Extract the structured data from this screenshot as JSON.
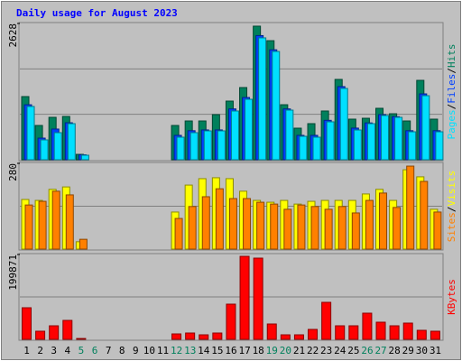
{
  "chart_data": [
    {
      "type": "bar",
      "title": "Daily usage for August 2023",
      "ylim": [
        0,
        2628
      ],
      "yticks": [
        2628
      ],
      "legend_separator": "/",
      "series": [
        {
          "name": "Hits",
          "color": "#00805c",
          "values": [
            1218,
            661,
            818,
            835,
            104,
            0,
            0,
            0,
            0,
            0,
            0,
            661,
            748,
            748,
            870,
            1131,
            1392,
            2576,
            2296,
            1061,
            609,
            696,
            940,
            1549,
            783,
            800,
            992,
            887,
            748,
            1531,
            783
          ]
        },
        {
          "name": "Files",
          "color": "#0040ff",
          "values": [
            1060,
            417,
            592,
            713,
            95,
            0,
            0,
            0,
            0,
            0,
            0,
            470,
            560,
            575,
            575,
            980,
            1200,
            2394,
            2120,
            980,
            470,
            470,
            760,
            1410,
            610,
            710,
            870,
            830,
            560,
            1270,
            560
          ]
        },
        {
          "name": "Pages",
          "color": "#00e0ff",
          "values": [
            1027,
            383,
            522,
            696,
            87,
            0,
            0,
            0,
            0,
            0,
            0,
            435,
            522,
            557,
            557,
            940,
            1166,
            2350,
            2088,
            957,
            452,
            435,
            731,
            1375,
            574,
            696,
            853,
            818,
            539,
            1235,
            539
          ]
        }
      ]
    },
    {
      "type": "bar",
      "ylim": [
        0,
        280
      ],
      "yticks": [
        280
      ],
      "series": [
        {
          "name": "Visits",
          "color": "#ffff00",
          "values": [
            162,
            159,
            195,
            203,
            24,
            0,
            0,
            0,
            0,
            0,
            0,
            121,
            209,
            230,
            233,
            230,
            189,
            159,
            153,
            159,
            147,
            156,
            159,
            159,
            159,
            180,
            195,
            159,
            259,
            236,
            130
          ]
        },
        {
          "name": "Sites",
          "color": "#ff8000",
          "values": [
            144,
            156,
            189,
            177,
            32,
            0,
            0,
            0,
            0,
            0,
            0,
            100,
            139,
            171,
            197,
            165,
            165,
            153,
            147,
            130,
            144,
            139,
            130,
            139,
            118,
            159,
            183,
            136,
            271,
            221,
            121
          ]
        }
      ]
    },
    {
      "type": "bar",
      "ylim": [
        0,
        199871
      ],
      "yticks": [
        199871
      ],
      "series": [
        {
          "name": "KBytes",
          "color": "#ff0000",
          "values": [
            74420,
            19130,
            31890,
            44650,
            2000,
            0,
            0,
            0,
            0,
            0,
            0,
            12760,
            14880,
            10630,
            14880,
            82910,
            195600,
            191340,
            36140,
            10630,
            10630,
            23390,
            87170,
            31890,
            31890,
            61650,
            40390,
            31890,
            38270,
            21260,
            19130
          ]
        }
      ],
      "categories": [
        "1",
        "2",
        "3",
        "4",
        "5",
        "6",
        "7",
        "8",
        "9",
        "10",
        "11",
        "12",
        "13",
        "14",
        "15",
        "16",
        "17",
        "18",
        "19",
        "20",
        "21",
        "22",
        "23",
        "24",
        "25",
        "26",
        "27",
        "28",
        "29",
        "30",
        "31"
      ],
      "category_colors": [
        "#000000",
        "#000000",
        "#000000",
        "#000000",
        "#00805c",
        "#00805c",
        "#000000",
        "#000000",
        "#000000",
        "#000000",
        "#000000",
        "#00805c",
        "#00805c",
        "#000000",
        "#000000",
        "#000000",
        "#000000",
        "#000000",
        "#00805c",
        "#00805c",
        "#000000",
        "#000000",
        "#000000",
        "#000000",
        "#000000",
        "#00805c",
        "#00805c",
        "#000000",
        "#000000",
        "#000000",
        "#000000"
      ]
    }
  ]
}
